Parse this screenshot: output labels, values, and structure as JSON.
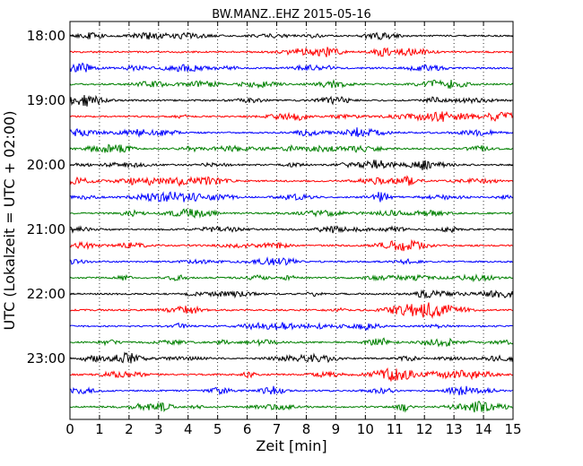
{
  "chart_data": {
    "type": "line",
    "title": "BW.MANZ..EHZ 2015-05-16",
    "xlabel": "Zeit  [min]",
    "ylabel": "UTC (Lokalzeit = UTC + 02:00)",
    "xlim": [
      0,
      15
    ],
    "x_ticks": [
      "0",
      "1",
      "2",
      "3",
      "4",
      "5",
      "6",
      "7",
      "8",
      "9",
      "10",
      "11",
      "12",
      "13",
      "14",
      "15"
    ],
    "y_ticks": [
      "18:00",
      "19:00",
      "20:00",
      "21:00",
      "22:00",
      "23:00"
    ],
    "traces_per_hour": 4,
    "minutes_per_trace": 15,
    "trace_start_times": [
      "18:00",
      "18:15",
      "18:30",
      "18:45",
      "19:00",
      "19:15",
      "19:30",
      "19:45",
      "20:00",
      "20:15",
      "20:30",
      "20:45",
      "21:00",
      "21:15",
      "21:30",
      "21:45",
      "22:00",
      "22:15",
      "22:30",
      "22:45",
      "23:00",
      "23:15",
      "23:30",
      "23:45"
    ],
    "trace_colors": [
      "#000000",
      "#ff0000",
      "#0000ff",
      "#008000"
    ],
    "grid": "vertical dotted at each minute"
  }
}
